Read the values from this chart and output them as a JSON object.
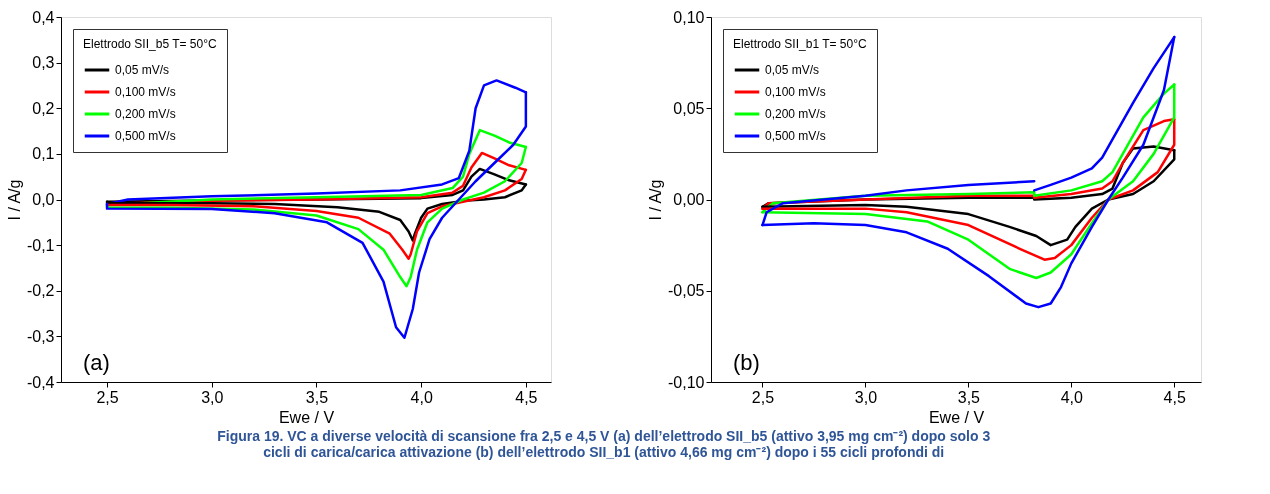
{
  "chart_data": [
    {
      "type": "line",
      "xlabel": "Ewe / V",
      "ylabel": "I / A/g",
      "legend_title": "Elettrodo SII_b5 T= 50°C",
      "legend": "top left",
      "grid": false,
      "marker": "none",
      "line_style": "solid",
      "xlim": [
        2.28,
        4.62
      ],
      "xticks": [
        {
          "value": 2.5,
          "label": "2,5"
        },
        {
          "value": 3.0,
          "label": "3,0"
        },
        {
          "value": 3.5,
          "label": "3,5"
        },
        {
          "value": 4.0,
          "label": "4,0"
        },
        {
          "value": 4.5,
          "label": "4,5"
        }
      ],
      "ylim": [
        -0.4,
        0.4
      ],
      "yticks": [
        {
          "value": -0.4,
          "label": "-0,4"
        },
        {
          "value": -0.3,
          "label": "-0,3"
        },
        {
          "value": -0.2,
          "label": "-0,2"
        },
        {
          "value": -0.1,
          "label": "-0,1"
        },
        {
          "value": 0.0,
          "label": "0,0"
        },
        {
          "value": 0.1,
          "label": "0,1"
        },
        {
          "value": 0.2,
          "label": "0,2"
        },
        {
          "value": 0.3,
          "label": "0,3"
        },
        {
          "value": 0.4,
          "label": "0,4"
        }
      ],
      "annotations": [
        "(a)",
        "Figura 19. VC a diverse velocità di scansione fra 2,5 e 4,5 V (a) dell’elettrodo SII_b5 (attivo 3,95 mg cm⁻²) dopo solo 3",
        "cicli di carica/carica attivazione (b) dell’elettrodo SII_b1 (attivo 4,66 mg cm⁻²) dopo i 55 cicli profondi di"
      ],
      "series": [
        {
          "name": "0,05 mV/s",
          "color": "#000000",
          "x": [
            2.5,
            3.0,
            3.5,
            4.0,
            4.15,
            4.2,
            4.24,
            4.28,
            4.35,
            4.42,
            4.5
          ],
          "values": [
            -0.005,
            -0.002,
            0.0,
            0.003,
            0.01,
            0.02,
            0.05,
            0.067,
            0.055,
            0.042,
            0.033
          ]
        },
        {
          "color": "#000000",
          "x": [
            4.5,
            4.48,
            4.4,
            4.3,
            4.2,
            4.1,
            4.03,
            4.0,
            3.97,
            3.96,
            3.94,
            3.9,
            3.8,
            3.6,
            3.3,
            3.0,
            2.5,
            2.5
          ],
          "values": [
            0.033,
            0.02,
            0.005,
            0.0,
            -0.003,
            -0.01,
            -0.02,
            -0.04,
            -0.075,
            -0.09,
            -0.07,
            -0.045,
            -0.027,
            -0.017,
            -0.01,
            -0.008,
            -0.008,
            -0.005
          ]
        },
        {
          "name": "0,100 mV/s",
          "color": "#ff0000",
          "x": [
            2.5,
            3.0,
            3.5,
            4.0,
            4.15,
            4.2,
            4.24,
            4.29,
            4.35,
            4.42,
            4.5
          ],
          "values": [
            -0.01,
            -0.003,
            0.0,
            0.005,
            0.015,
            0.03,
            0.07,
            0.102,
            0.09,
            0.075,
            0.065
          ]
        },
        {
          "color": "#ff0000",
          "x": [
            4.5,
            4.48,
            4.4,
            4.3,
            4.2,
            4.1,
            4.03,
            3.98,
            3.95,
            3.94,
            3.91,
            3.85,
            3.7,
            3.5,
            3.2,
            2.8,
            2.5,
            2.5
          ],
          "values": [
            0.065,
            0.045,
            0.02,
            0.005,
            -0.005,
            -0.015,
            -0.03,
            -0.07,
            -0.12,
            -0.13,
            -0.11,
            -0.075,
            -0.04,
            -0.025,
            -0.015,
            -0.012,
            -0.012,
            -0.01
          ]
        },
        {
          "name": "0,200 mV/s",
          "color": "#00ff00",
          "x": [
            2.5,
            3.0,
            3.5,
            4.0,
            4.15,
            4.2,
            4.23,
            4.28,
            4.35,
            4.42,
            4.5
          ],
          "values": [
            -0.012,
            0.0,
            0.005,
            0.01,
            0.025,
            0.05,
            0.1,
            0.152,
            0.14,
            0.125,
            0.115
          ]
        },
        {
          "color": "#00ff00",
          "x": [
            4.5,
            4.48,
            4.4,
            4.3,
            4.2,
            4.1,
            4.03,
            3.98,
            3.95,
            3.93,
            3.9,
            3.82,
            3.7,
            3.5,
            3.2,
            2.8,
            2.5,
            2.5
          ],
          "values": [
            0.115,
            0.08,
            0.04,
            0.015,
            0.0,
            -0.02,
            -0.05,
            -0.11,
            -0.17,
            -0.19,
            -0.17,
            -0.11,
            -0.065,
            -0.035,
            -0.022,
            -0.018,
            -0.018,
            -0.012
          ]
        },
        {
          "name": "0,500 mV/s",
          "color": "#0000ff",
          "x": [
            2.5,
            2.6,
            3.0,
            3.5,
            3.9,
            4.1,
            4.18,
            4.23,
            4.26,
            4.3,
            4.36,
            4.45,
            4.5
          ],
          "values": [
            -0.01,
            0.0,
            0.007,
            0.013,
            0.02,
            0.033,
            0.047,
            0.107,
            0.2,
            0.25,
            0.261,
            0.245,
            0.235
          ]
        },
        {
          "color": "#0000ff",
          "x": [
            4.5,
            4.5,
            4.44,
            4.35,
            4.26,
            4.18,
            4.1,
            4.04,
            3.99,
            3.96,
            3.92,
            3.88,
            3.82,
            3.72,
            3.55,
            3.3,
            3.0,
            2.5,
            2.5
          ],
          "values": [
            0.235,
            0.16,
            0.12,
            0.08,
            0.04,
            0.0,
            -0.04,
            -0.087,
            -0.16,
            -0.24,
            -0.303,
            -0.28,
            -0.18,
            -0.095,
            -0.05,
            -0.03,
            -0.021,
            -0.02,
            -0.01
          ]
        }
      ]
    },
    {
      "type": "line",
      "xlabel": "Ewe / V",
      "ylabel": "I / A/g",
      "legend_title": "Elettrodo SII_b1 T= 50°C",
      "legend": "top left",
      "grid": false,
      "marker": "none",
      "line_style": "solid",
      "xlim": [
        2.25,
        4.63
      ],
      "xticks": [
        {
          "value": 2.5,
          "label": "2,5"
        },
        {
          "value": 3.0,
          "label": "3,0"
        },
        {
          "value": 3.5,
          "label": "3,5"
        },
        {
          "value": 4.0,
          "label": "4,0"
        },
        {
          "value": 4.5,
          "label": "4,5"
        }
      ],
      "ylim": [
        -0.1,
        0.1
      ],
      "yticks": [
        {
          "value": -0.1,
          "label": "-0,10"
        },
        {
          "value": -0.05,
          "label": "-0,05"
        },
        {
          "value": 0.0,
          "label": "0,00"
        },
        {
          "value": 0.05,
          "label": "0,05"
        },
        {
          "value": 0.1,
          "label": "0,10"
        }
      ],
      "annotations": [
        "(b)"
      ],
      "series": [
        {
          "name": "0,05 mV/s",
          "color": "#000000",
          "x": [
            2.5,
            2.53,
            3.0,
            3.5,
            3.82,
            3.82,
            4.0,
            4.15,
            4.2,
            4.25,
            4.3,
            4.4,
            4.5
          ],
          "values": [
            -0.004,
            -0.002,
            0.0,
            0.001,
            0.001,
            0.0,
            0.001,
            0.003,
            0.006,
            0.02,
            0.028,
            0.029,
            0.027
          ]
        },
        {
          "color": "#000000",
          "x": [
            4.5,
            4.5,
            4.4,
            4.3,
            4.18,
            4.1,
            4.02,
            3.98,
            3.9,
            3.83,
            3.7,
            3.5,
            3.2,
            3.0,
            2.5
          ],
          "values": [
            0.027,
            0.022,
            0.01,
            0.003,
            0.0,
            -0.005,
            -0.015,
            -0.022,
            -0.025,
            -0.02,
            -0.015,
            -0.008,
            -0.004,
            -0.003,
            -0.004
          ]
        },
        {
          "name": "0,100 mV/s",
          "color": "#ff0000",
          "x": [
            2.5,
            2.53,
            3.0,
            3.5,
            3.82,
            3.82,
            4.0,
            4.15,
            4.2,
            4.25,
            4.35,
            4.45,
            4.5
          ],
          "values": [
            -0.005,
            -0.002,
            0.0,
            0.002,
            0.002,
            0.001,
            0.003,
            0.006,
            0.01,
            0.02,
            0.038,
            0.043,
            0.044
          ]
        },
        {
          "color": "#ff0000",
          "x": [
            4.5,
            4.5,
            4.42,
            4.3,
            4.18,
            4.1,
            4.0,
            3.92,
            3.87,
            3.75,
            3.5,
            3.2,
            3.0,
            2.5
          ],
          "values": [
            0.044,
            0.03,
            0.015,
            0.005,
            0.0,
            -0.01,
            -0.025,
            -0.032,
            -0.033,
            -0.027,
            -0.014,
            -0.007,
            -0.005,
            -0.005
          ]
        },
        {
          "name": "0,200 mV/s",
          "color": "#00ff00",
          "x": [
            2.5,
            2.55,
            3.0,
            3.5,
            3.82,
            3.82,
            4.0,
            4.15,
            4.2,
            4.25,
            4.35,
            4.45,
            4.5
          ],
          "values": [
            -0.007,
            -0.002,
            0.002,
            0.003,
            0.004,
            0.002,
            0.005,
            0.01,
            0.015,
            0.025,
            0.045,
            0.058,
            0.063
          ]
        },
        {
          "color": "#00ff00",
          "x": [
            4.5,
            4.5,
            4.4,
            4.3,
            4.18,
            4.1,
            4.0,
            3.9,
            3.83,
            3.7,
            3.5,
            3.3,
            3.0,
            2.5
          ],
          "values": [
            0.063,
            0.045,
            0.025,
            0.01,
            0.0,
            -0.013,
            -0.03,
            -0.04,
            -0.043,
            -0.038,
            -0.022,
            -0.012,
            -0.008,
            -0.007
          ]
        },
        {
          "name": "0,500 mV/s",
          "color": "#0000ff",
          "x": [
            3.82,
            3.9,
            4.0,
            4.1,
            4.15,
            4.2,
            4.3,
            4.4,
            4.5
          ],
          "values": [
            0.005,
            0.008,
            0.012,
            0.017,
            0.023,
            0.033,
            0.053,
            0.072,
            0.089
          ]
        },
        {
          "color": "#0000ff",
          "x": [
            4.5,
            4.45,
            4.35,
            4.25,
            4.18,
            4.1,
            4.0,
            3.95,
            3.9,
            3.84,
            3.78,
            3.6,
            3.4,
            3.2,
            3.0,
            2.75,
            2.5
          ],
          "values": [
            0.089,
            0.06,
            0.03,
            0.012,
            0.0,
            -0.015,
            -0.035,
            -0.048,
            -0.057,
            -0.059,
            -0.057,
            -0.042,
            -0.027,
            -0.018,
            -0.014,
            -0.013,
            -0.014
          ]
        },
        {
          "color": "#0000ff",
          "x": [
            2.5,
            2.52,
            2.6,
            2.8,
            3.0,
            3.2,
            3.5,
            3.82
          ],
          "values": [
            -0.014,
            -0.007,
            -0.002,
            0.0,
            0.002,
            0.005,
            0.008,
            0.01
          ]
        }
      ]
    }
  ]
}
